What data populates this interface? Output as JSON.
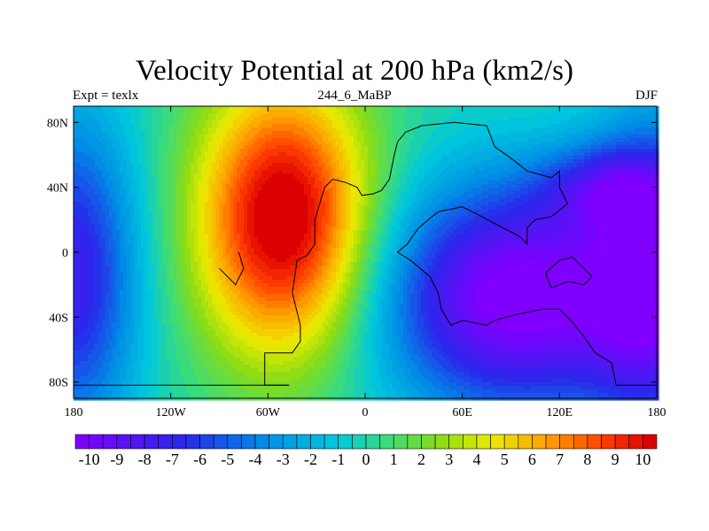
{
  "chart_data": {
    "type": "heatmap",
    "title": "Velocity Potential at 200 hPa (km2/s)",
    "left_string": "Expt = texlx",
    "center_string": "244_6_MaBP",
    "right_string": "DJF",
    "x_ticks": [
      "180",
      "120W",
      "60W",
      "0",
      "60E",
      "120E",
      "180"
    ],
    "x_tick_values": [
      -180,
      -120,
      -60,
      0,
      60,
      120,
      180
    ],
    "y_ticks": [
      "80S",
      "40S",
      "0",
      "40N",
      "80N"
    ],
    "y_tick_values": [
      -80,
      -40,
      0,
      40,
      80
    ],
    "xlim": [
      -180,
      180
    ],
    "ylim": [
      -90,
      90
    ],
    "colorbar": {
      "labels": [
        "-10",
        "-9",
        "-8",
        "-7",
        "-6",
        "-5",
        "-4",
        "-3",
        "-2",
        "-1",
        "0",
        "1",
        "2",
        "3",
        "4",
        "5",
        "6",
        "7",
        "8",
        "9",
        "10"
      ],
      "min": -10.5,
      "max": 10.5,
      "step": 0.5
    },
    "field_centers": [
      {
        "lon": -50,
        "lat": 20,
        "value": 11.5,
        "sx": 38,
        "sy": 60
      },
      {
        "lon": 95,
        "lat": -28,
        "value": -11.0,
        "sx": 60,
        "sy": 50
      },
      {
        "lon": -180,
        "lat": -15,
        "value": -7.5,
        "sx": 28,
        "sy": 70
      },
      {
        "lon": 180,
        "lat": -15,
        "value": -7.5,
        "sx": 28,
        "sy": 70
      },
      {
        "lon": 150,
        "lat": 40,
        "value": -4.5,
        "sx": 30,
        "sy": 18
      }
    ],
    "coastlines": [
      [
        [
          -47,
          -82
        ],
        [
          -62,
          -82
        ],
        [
          -62,
          -62
        ],
        [
          -45,
          -62
        ],
        [
          -40,
          -55
        ],
        [
          -40,
          -45
        ],
        [
          -45,
          -25
        ],
        [
          -42,
          -5
        ],
        [
          -36,
          -2
        ],
        [
          -31,
          5
        ],
        [
          -31,
          20
        ],
        [
          -28,
          30
        ],
        [
          -25,
          40
        ],
        [
          -20,
          45
        ],
        [
          -12,
          43
        ],
        [
          -5,
          40
        ],
        [
          -2,
          35
        ],
        [
          5,
          36
        ],
        [
          10,
          38
        ],
        [
          15,
          45
        ],
        [
          18,
          60
        ],
        [
          20,
          68
        ],
        [
          25,
          74
        ],
        [
          35,
          78
        ],
        [
          55,
          80
        ],
        [
          75,
          78
        ],
        [
          80,
          65
        ],
        [
          90,
          58
        ],
        [
          100,
          50
        ],
        [
          115,
          46
        ],
        [
          120,
          50
        ],
        [
          120,
          40
        ],
        [
          125,
          30
        ],
        [
          115,
          22
        ],
        [
          105,
          20
        ],
        [
          100,
          15
        ],
        [
          100,
          5
        ],
        [
          95,
          10
        ],
        [
          85,
          15
        ],
        [
          72,
          22
        ],
        [
          60,
          28
        ],
        [
          45,
          25
        ],
        [
          33,
          15
        ],
        [
          26,
          5
        ],
        [
          20,
          0
        ],
        [
          28,
          -5
        ],
        [
          40,
          -15
        ],
        [
          45,
          -25
        ],
        [
          47,
          -35
        ],
        [
          53,
          -45
        ],
        [
          60,
          -42
        ],
        [
          75,
          -45
        ],
        [
          80,
          -42
        ],
        [
          95,
          -38
        ],
        [
          110,
          -35
        ],
        [
          120,
          -35
        ],
        [
          127,
          -42
        ],
        [
          135,
          -52
        ],
        [
          142,
          -62
        ],
        [
          152,
          -68
        ],
        [
          155,
          -82
        ],
        [
          180,
          -82
        ]
      ],
      [
        [
          -180,
          -82
        ],
        [
          -47,
          -82
        ]
      ],
      [
        [
          112,
          -12
        ],
        [
          120,
          -5
        ],
        [
          128,
          -3
        ],
        [
          135,
          -10
        ],
        [
          140,
          -15
        ],
        [
          135,
          -20
        ],
        [
          125,
          -18
        ],
        [
          115,
          -22
        ],
        [
          112,
          -15
        ],
        [
          112,
          -12
        ]
      ],
      [
        [
          -90,
          -10
        ],
        [
          -85,
          -15
        ],
        [
          -80,
          -20
        ],
        [
          -75,
          -10
        ],
        [
          -78,
          0
        ]
      ]
    ]
  }
}
